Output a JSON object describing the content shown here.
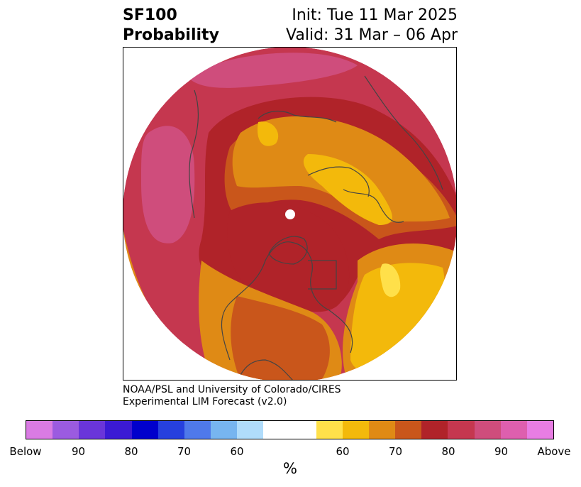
{
  "title": {
    "line1_left": "SF100",
    "line2_left": "Probability",
    "line1_right": "Init: Tue 11 Mar 2025",
    "line2_right": "Valid: 31 Mar – 06 Apr"
  },
  "credit": {
    "line1": "NOAA/PSL and University of Colorado/CIRES",
    "line2": "Experimental LIM Forecast (v2.0)"
  },
  "colorbar": {
    "unit_label": "%",
    "tick_labels": [
      "Below",
      "90",
      "80",
      "70",
      "60",
      "60",
      "70",
      "80",
      "90",
      "Above"
    ],
    "colors": [
      "#d97be3",
      "#9b5be0",
      "#6a35d9",
      "#3b1ad4",
      "#0000cc",
      "#2640de",
      "#4f79ea",
      "#77b5f0",
      "#b0dcfb",
      "#ffffff",
      "#ffe04a",
      "#f3b90b",
      "#df8a15",
      "#c9561b",
      "#b02329",
      "#c5374f",
      "#cf4d7c",
      "#de5fae",
      "#e87de3"
    ]
  },
  "map": {
    "projection": "north-polar-stereographic",
    "pole_marker_color": "#ffffff",
    "coastline_color": "#444444"
  }
}
